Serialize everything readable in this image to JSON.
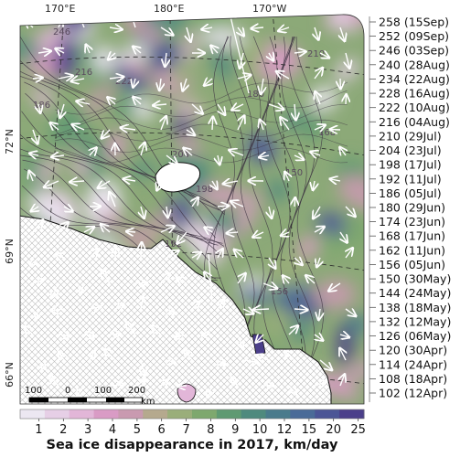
{
  "map": {
    "lon_labels": [
      "170°E",
      "180°E",
      "170°W"
    ],
    "lat_labels": [
      "72°N",
      "69°N",
      "66°N"
    ],
    "contour_labels": [
      "246",
      "216",
      "222",
      "186",
      "204",
      "198",
      "192",
      "180",
      "168",
      "150",
      "156",
      "210"
    ]
  },
  "legend_dates": [
    "258 (15Sep)",
    "252 (09Sep)",
    "246 (03Sep)",
    "240 (28Aug)",
    "234 (22Aug)",
    "228 (16Aug)",
    "222 (10Aug)",
    "216 (04Aug)",
    "210 (29Jul)",
    "204 (23Jul)",
    "198 (17Jul)",
    "192 (11Jul)",
    "186 (05Jul)",
    "180 (29Jun)",
    "174 (23Jun)",
    "168 (17Jun)",
    "162 (11Jun)",
    "156 (05Jun)",
    "150 (30May)",
    "144 (24May)",
    "138 (18May)",
    "132 (12May)",
    "126 (06May)",
    "120 (30Apr)",
    "114 (24Apr)",
    "108 (18Apr)",
    "102 (12Apr)"
  ],
  "scalebar": {
    "labels": [
      "100",
      "0",
      "100",
      "200"
    ],
    "unit": "km"
  },
  "colorbar": {
    "tick_labels": [
      "1",
      "2",
      "3",
      "4",
      "5",
      "6",
      "7",
      "8",
      "9",
      "10",
      "12",
      "15",
      "20",
      "25"
    ],
    "colors": [
      "#ece7f2",
      "#e6cfe6",
      "#e2b6d8",
      "#d99bc5",
      "#c99ab0",
      "#b5a98e",
      "#9aae7a",
      "#7ea86e",
      "#5f9a72",
      "#4f8a7e",
      "#4a7b8c",
      "#4a6b98",
      "#4b5596",
      "#4b3f8a"
    ],
    "title": "Sea ice disappearance in 2017, km/day"
  }
}
